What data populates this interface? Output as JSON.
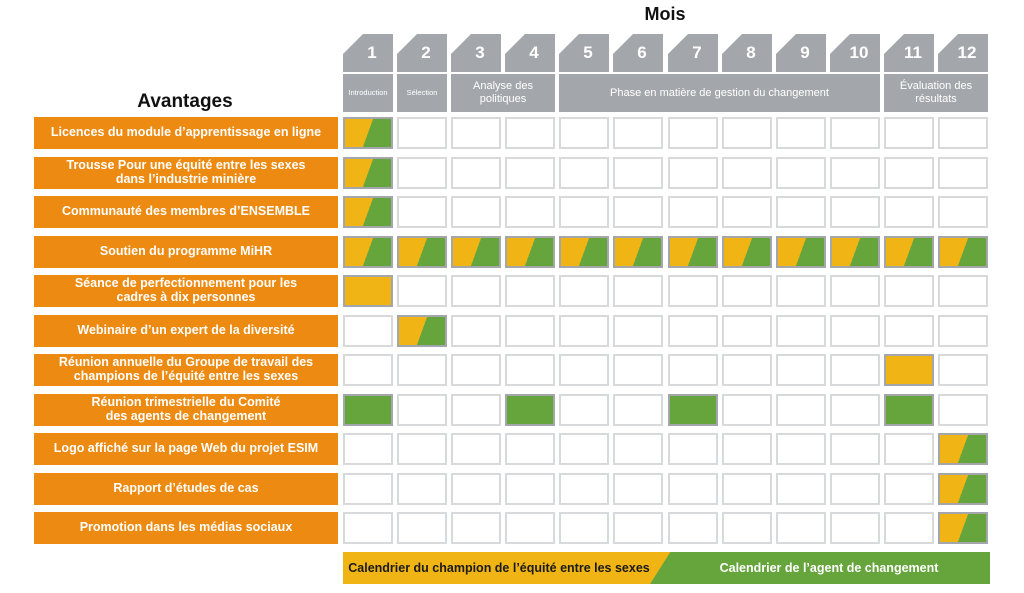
{
  "header": {
    "mois_title": "Mois",
    "avantages_title": "Avantages",
    "months": [
      "1",
      "2",
      "3",
      "4",
      "5",
      "6",
      "7",
      "8",
      "9",
      "10",
      "11",
      "12"
    ]
  },
  "phases": [
    {
      "label": "Introduction",
      "months": [
        1,
        1
      ]
    },
    {
      "label": "Sélection",
      "months": [
        2,
        2
      ]
    },
    {
      "label": "Analyse des politiques",
      "months": [
        3,
        4
      ]
    },
    {
      "label": "Phase en matière de gestion du changement",
      "months": [
        5,
        10
      ]
    },
    {
      "label": "Évaluation des résultats",
      "months": [
        11,
        12
      ]
    }
  ],
  "rows": [
    {
      "label": "Licences du module d’apprentissage en ligne",
      "cells": [
        "s",
        "",
        "",
        "",
        "",
        "",
        "",
        "",
        "",
        "",
        "",
        ""
      ]
    },
    {
      "label": "Trousse Pour une équité entre les sexes\ndans l’industrie minière",
      "cells": [
        "s",
        "",
        "",
        "",
        "",
        "",
        "",
        "",
        "",
        "",
        "",
        ""
      ]
    },
    {
      "label": "Communauté des membres d’ENSEMBLE",
      "cells": [
        "s",
        "",
        "",
        "",
        "",
        "",
        "",
        "",
        "",
        "",
        "",
        ""
      ]
    },
    {
      "label": "Soutien du programme MiHR",
      "cells": [
        "s",
        "s",
        "s",
        "s",
        "s",
        "s",
        "s",
        "s",
        "s",
        "s",
        "s",
        "s"
      ]
    },
    {
      "label": "Séance de perfectionnement pour les\ncadres à dix personnes",
      "cells": [
        "y",
        "",
        "",
        "",
        "",
        "",
        "",
        "",
        "",
        "",
        "",
        ""
      ]
    },
    {
      "label": "Webinaire d’un expert de la diversité",
      "cells": [
        "",
        "s",
        "",
        "",
        "",
        "",
        "",
        "",
        "",
        "",
        "",
        ""
      ]
    },
    {
      "label": "Réunion annuelle du Groupe de travail des\nchampions de l’équité entre les sexes",
      "cells": [
        "",
        "",
        "",
        "",
        "",
        "",
        "",
        "",
        "",
        "",
        "y",
        ""
      ]
    },
    {
      "label": "Réunion trimestrielle du Comité\ndes agents de changement",
      "cells": [
        "g",
        "",
        "",
        "g",
        "",
        "",
        "g",
        "",
        "",
        "",
        "g",
        ""
      ]
    },
    {
      "label": "Logo affiché sur la page Web du projet ESIM",
      "cells": [
        "",
        "",
        "",
        "",
        "",
        "",
        "",
        "",
        "",
        "",
        "",
        "s"
      ]
    },
    {
      "label": "Rapport d’études de cas",
      "cells": [
        "",
        "",
        "",
        "",
        "",
        "",
        "",
        "",
        "",
        "",
        "",
        "s"
      ]
    },
    {
      "label": "Promotion dans les médias sociaux",
      "cells": [
        "",
        "",
        "",
        "",
        "",
        "",
        "",
        "",
        "",
        "",
        "",
        "s"
      ]
    }
  ],
  "legend": {
    "champion": "Calendrier du champion de l’équité entre les sexes",
    "agent": "Calendrier de l’agent de changement"
  },
  "colors": {
    "orange": "#ed8a11",
    "yellow": "#f0b414",
    "green": "#65a53c",
    "gray": "#a3a7ab"
  }
}
